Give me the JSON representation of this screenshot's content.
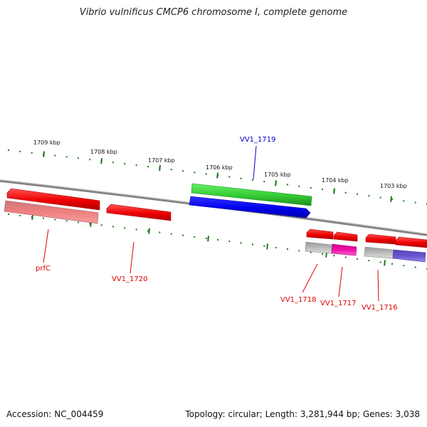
{
  "title": "Vibrio vulnificus CMCP6 chromosome I, complete genome",
  "accession": "Accession: NC_004459",
  "summary": "Topology: circular; Length: 3,281,944 bp; Genes: 3,038",
  "colors": {
    "backbone": "#808080",
    "tick": "#1a7a1a",
    "gene_red": "#ee0000",
    "gene_label_red": "#dd0000",
    "gene_label_blue": "#0000cc",
    "gene_green": "#33cc33",
    "gene_blue": "#0000ee",
    "feature_pink": "#f08080",
    "feature_gray": "#bbbbbb",
    "feature_magenta": "#ee11aa",
    "feature_purple": "#6655cc"
  },
  "kbp_labels": [
    "1709 kbp",
    "1708 kbp",
    "1707 kbp",
    "1706 kbp",
    "1705 kbp",
    "1704 kbp",
    "1703 kbp"
  ],
  "gene_labels": [
    {
      "text": "prfC",
      "color": "red"
    },
    {
      "text": "VV1_1720",
      "color": "red"
    },
    {
      "text": "VV1_1719",
      "color": "blue"
    },
    {
      "text": "VV1_1718",
      "color": "red"
    },
    {
      "text": "VV1_1717",
      "color": "red"
    },
    {
      "text": "VV1_1716",
      "color": "red"
    }
  ]
}
